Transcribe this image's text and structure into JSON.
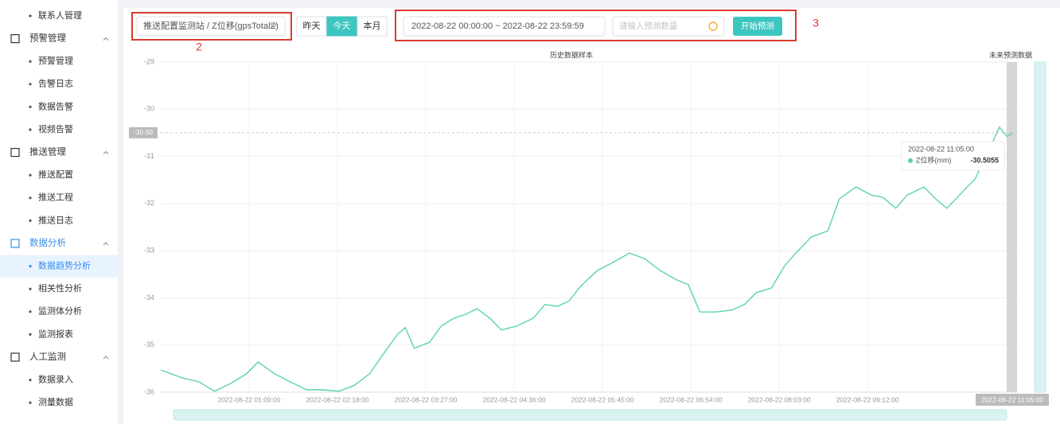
{
  "sidebar": {
    "top": [
      "联系人管理"
    ],
    "groups": [
      {
        "title": "预警管理",
        "items": [
          "预警管理",
          "告警日志",
          "数据告警",
          "视频告警"
        ]
      },
      {
        "title": "推送管理",
        "items": [
          "推送配置",
          "推送工程",
          "推送日志"
        ]
      },
      {
        "title": "数据分析",
        "items": [
          "数据趋势分析",
          "相关性分析",
          "监测体分析",
          "监测报表"
        ]
      },
      {
        "title": "人工监测",
        "items": [
          "数据录入",
          "测量数据"
        ]
      }
    ]
  },
  "toolbar": {
    "selector": "推送配置监测站 / Z位移(gpsTotalZ)",
    "ranges": [
      "昨天",
      "今天",
      "本月"
    ],
    "date_range": "2022-08-22 00:00:00 ~ 2022-08-22 23:59:59",
    "count_placeholder": "请输入预测数量",
    "predict_button": "开始预测"
  },
  "annotations": [
    "2",
    "3"
  ],
  "chart_data": {
    "type": "line",
    "history_label": "历史数据样本",
    "forecast_label": "未来预测数据",
    "x": [
      "2022-08-22 00:00:00",
      "2022-08-22 00:17:00",
      "2022-08-22 00:30:00",
      "2022-08-22 00:42:00",
      "2022-08-22 00:55:00",
      "2022-08-22 01:07:00",
      "2022-08-22 01:16:00",
      "2022-08-22 01:29:00",
      "2022-08-22 01:41:00",
      "2022-08-22 01:54:00",
      "2022-08-22 02:06:00",
      "2022-08-22 02:19:00",
      "2022-08-22 02:31:00",
      "2022-08-22 02:43:00",
      "2022-08-22 02:56:00",
      "2022-08-22 03:05:00",
      "2022-08-22 03:11:00",
      "2022-08-22 03:18:00",
      "2022-08-22 03:30:00",
      "2022-08-22 03:39:00",
      "2022-08-22 03:49:00",
      "2022-08-22 03:58:00",
      "2022-08-22 04:07:00",
      "2022-08-22 04:17:00",
      "2022-08-22 04:26:00",
      "2022-08-22 04:38:00",
      "2022-08-22 04:51:00",
      "2022-08-22 05:00:00",
      "2022-08-22 05:10:00",
      "2022-08-22 05:19:00",
      "2022-08-22 05:28:00",
      "2022-08-22 05:41:00",
      "2022-08-22 05:53:00",
      "2022-08-22 06:06:00",
      "2022-08-22 06:18:00",
      "2022-08-22 06:30:00",
      "2022-08-22 06:43:00",
      "2022-08-22 06:52:00",
      "2022-08-22 07:01:00",
      "2022-08-22 07:14:00",
      "2022-08-22 07:26:00",
      "2022-08-22 07:36:00",
      "2022-08-22 07:45:00",
      "2022-08-22 07:57:00",
      "2022-08-22 08:07:00",
      "2022-08-22 08:16:00",
      "2022-08-22 08:28:00",
      "2022-08-22 08:41:00",
      "2022-08-22 08:50:00",
      "2022-08-22 09:03:00",
      "2022-08-22 09:15:00",
      "2022-08-22 09:24:00",
      "2022-08-22 09:34:00",
      "2022-08-22 09:43:00",
      "2022-08-22 09:56:00",
      "2022-08-22 10:05:00",
      "2022-08-22 10:14:00",
      "2022-08-22 10:27:00",
      "2022-08-22 10:36:00",
      "2022-08-22 10:45:00",
      "2022-08-22 10:55:00",
      "2022-08-22 11:01:00",
      "2022-08-22 11:05:00"
    ],
    "series": [
      {
        "name": "Z位移(mm)",
        "color": "#5cd2b0",
        "values": [
          -35.53,
          -35.7,
          -35.78,
          -35.98,
          -35.81,
          -35.61,
          -35.36,
          -35.61,
          -35.78,
          -35.95,
          -35.95,
          -35.98,
          -35.86,
          -35.61,
          -35.11,
          -34.77,
          -34.63,
          -35.07,
          -34.94,
          -34.6,
          -34.43,
          -34.35,
          -34.23,
          -34.43,
          -34.68,
          -34.6,
          -34.43,
          -34.14,
          -34.18,
          -34.06,
          -33.75,
          -33.42,
          -33.25,
          -33.05,
          -33.17,
          -33.42,
          -33.62,
          -33.72,
          -34.3,
          -34.3,
          -34.26,
          -34.14,
          -33.89,
          -33.79,
          -33.33,
          -33.05,
          -32.71,
          -32.58,
          -31.9,
          -31.65,
          -31.82,
          -31.87,
          -32.1,
          -31.82,
          -31.65,
          -31.9,
          -32.1,
          -31.73,
          -31.48,
          -30.97,
          -30.38,
          -30.58,
          -30.5055
        ]
      }
    ],
    "xlim": [
      "2022-08-22 00:00:00",
      "2022-08-22 11:05:00"
    ],
    "xticks": [
      "2022-08-22 01:09:00",
      "2022-08-22 02:18:00",
      "2022-08-22 03:27:00",
      "2022-08-22 04:36:00",
      "2022-08-22 05:45:00",
      "2022-08-22 06:54:00",
      "2022-08-22 08:03:00",
      "2022-08-22 09:12:00"
    ],
    "ylim": [
      -36,
      -29
    ],
    "yticks": [
      -29,
      -30,
      -31,
      -32,
      -33,
      -34,
      -35,
      -36
    ],
    "reference_line": {
      "value": -30.5,
      "label": "-30.50"
    },
    "grid": true
  }
}
